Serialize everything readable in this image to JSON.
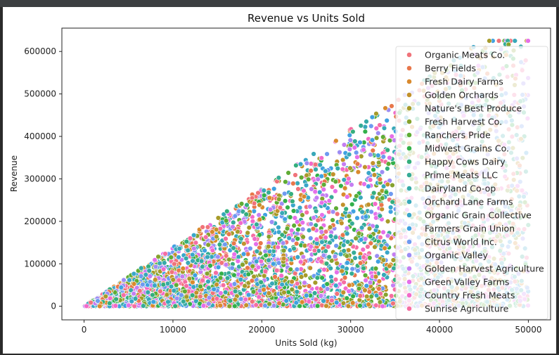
{
  "chart_data": {
    "type": "scatter",
    "title": "Revenue vs Units Sold",
    "xlabel": "Units Sold (kg)",
    "ylabel": "Revenue",
    "xlim": [
      -2500,
      52500
    ],
    "ylim": [
      -32000,
      655000
    ],
    "xticks": [
      0,
      10000,
      20000,
      30000,
      40000,
      50000
    ],
    "yticks": [
      0,
      100000,
      200000,
      300000,
      400000,
      500000,
      600000
    ],
    "grid": false,
    "legend_position": "right",
    "series": [
      {
        "name": "Organic Meats Co.",
        "color": "#f0737a"
      },
      {
        "name": "Berry Fields",
        "color": "#e8774b"
      },
      {
        "name": "Fresh Dairy Farms",
        "color": "#d98a2e"
      },
      {
        "name": "Golden Orchards",
        "color": "#c2912c"
      },
      {
        "name": "Nature's Best Produce",
        "color": "#a69b2a"
      },
      {
        "name": "Fresh Harvest Co.",
        "color": "#86a22e"
      },
      {
        "name": "Ranchers Pride",
        "color": "#5fac35"
      },
      {
        "name": "Midwest Grains Co.",
        "color": "#33b04a"
      },
      {
        "name": "Happy Cows Dairy",
        "color": "#35ae7d"
      },
      {
        "name": "Prime Meats LLC",
        "color": "#36ac96"
      },
      {
        "name": "Dairyland Co-op",
        "color": "#36aaa8"
      },
      {
        "name": "Orchard Lane Farms",
        "color": "#38a8b8"
      },
      {
        "name": "Organic Grain Collective",
        "color": "#3aa6c9"
      },
      {
        "name": "Farmers Grain Union",
        "color": "#3fa1e0"
      },
      {
        "name": "Citrus World Inc.",
        "color": "#6e9af0"
      },
      {
        "name": "Organic Valley",
        "color": "#9c8df3"
      },
      {
        "name": "Golden Harvest Agriculture",
        "color": "#c47ef2"
      },
      {
        "name": "Green Valley Farms",
        "color": "#e56fe9"
      },
      {
        "name": "Country Fresh Meats",
        "color": "#f26ac9"
      },
      {
        "name": "Sunrise Agriculture",
        "color": "#f56ea2"
      }
    ],
    "points_note_values": {
      "x_range": [
        0,
        50000
      ],
      "y_range": [
        0,
        625000
      ],
      "approx_max_revenue_per_unit": 14,
      "n_points_approx": 5000
    }
  }
}
